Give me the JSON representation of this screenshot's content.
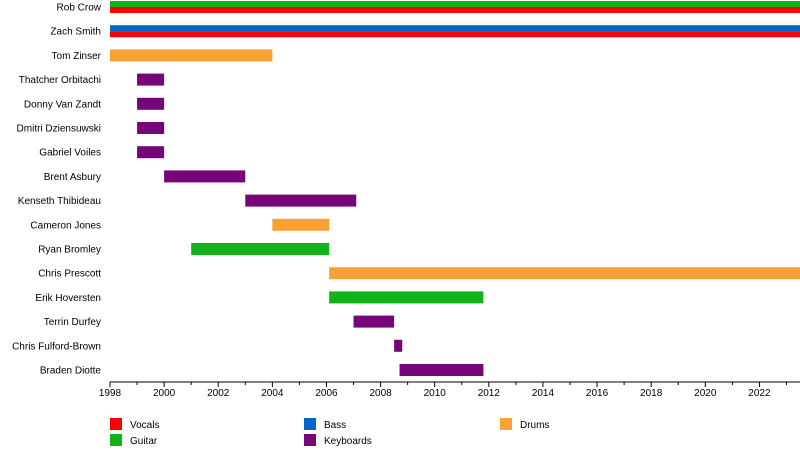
{
  "chart_data": {
    "type": "timeline",
    "title": "",
    "xlabel": "",
    "ylabel": "",
    "xlim": [
      1998,
      2023.5
    ],
    "x_ticks": [
      1998,
      2000,
      2002,
      2004,
      2006,
      2008,
      2010,
      2012,
      2014,
      2016,
      2018,
      2020,
      2022
    ],
    "grid": false,
    "legend_position": "bottom",
    "colors": {
      "Vocals": "#ff0000",
      "Bass": "#0066cc",
      "Drums": "#f9a233",
      "Guitar": "#11b317",
      "Keyboards": "#760677"
    },
    "legend": [
      {
        "label": "Vocals",
        "role": "Vocals"
      },
      {
        "label": "Bass",
        "role": "Bass"
      },
      {
        "label": "Drums",
        "role": "Drums"
      },
      {
        "label": "Guitar",
        "role": "Guitar"
      },
      {
        "label": "Keyboards",
        "role": "Keyboards"
      }
    ],
    "members": [
      {
        "name": "Rob Crow",
        "periods": [
          {
            "start": 1998,
            "end": 2023.5,
            "roles": [
              "Guitar",
              "Vocals"
            ]
          }
        ]
      },
      {
        "name": "Zach Smith",
        "periods": [
          {
            "start": 1998,
            "end": 2023.5,
            "roles": [
              "Bass",
              "Vocals"
            ]
          }
        ]
      },
      {
        "name": "Tom Zinser",
        "periods": [
          {
            "start": 1998,
            "end": 2004,
            "roles": [
              "Drums"
            ]
          }
        ]
      },
      {
        "name": "Thatcher Orbitachi",
        "periods": [
          {
            "start": 1999,
            "end": 2000,
            "roles": [
              "Keyboards"
            ]
          }
        ]
      },
      {
        "name": "Donny Van Zandt",
        "periods": [
          {
            "start": 1999,
            "end": 2000,
            "roles": [
              "Keyboards"
            ]
          }
        ]
      },
      {
        "name": "Dmitri Dziensuwski",
        "periods": [
          {
            "start": 1999,
            "end": 2000,
            "roles": [
              "Keyboards"
            ]
          }
        ]
      },
      {
        "name": "Gabriel Voiles",
        "periods": [
          {
            "start": 1999,
            "end": 2000,
            "roles": [
              "Keyboards"
            ]
          }
        ]
      },
      {
        "name": "Brent Asbury",
        "periods": [
          {
            "start": 2000,
            "end": 2003,
            "roles": [
              "Keyboards"
            ]
          }
        ]
      },
      {
        "name": "Kenseth Thibideau",
        "periods": [
          {
            "start": 2003,
            "end": 2007.1,
            "roles": [
              "Keyboards"
            ]
          }
        ]
      },
      {
        "name": "Cameron Jones",
        "periods": [
          {
            "start": 2004,
            "end": 2006.1,
            "roles": [
              "Drums"
            ]
          }
        ]
      },
      {
        "name": "Ryan Bromley",
        "periods": [
          {
            "start": 2001,
            "end": 2006.1,
            "roles": [
              "Guitar"
            ]
          }
        ]
      },
      {
        "name": "Chris Prescott",
        "periods": [
          {
            "start": 2006.1,
            "end": 2023.5,
            "roles": [
              "Drums"
            ]
          }
        ]
      },
      {
        "name": "Erik Hoversten",
        "periods": [
          {
            "start": 2006.1,
            "end": 2011.8,
            "roles": [
              "Guitar"
            ]
          }
        ]
      },
      {
        "name": "Terrin Durfey",
        "periods": [
          {
            "start": 2007,
            "end": 2008.5,
            "roles": [
              "Keyboards"
            ]
          }
        ]
      },
      {
        "name": "Chris Fulford-Brown",
        "periods": [
          {
            "start": 2008.5,
            "end": 2008.8,
            "roles": [
              "Keyboards"
            ]
          }
        ]
      },
      {
        "name": "Braden Diotte",
        "periods": [
          {
            "start": 2008.7,
            "end": 2011.8,
            "roles": [
              "Keyboards"
            ]
          }
        ]
      }
    ]
  }
}
